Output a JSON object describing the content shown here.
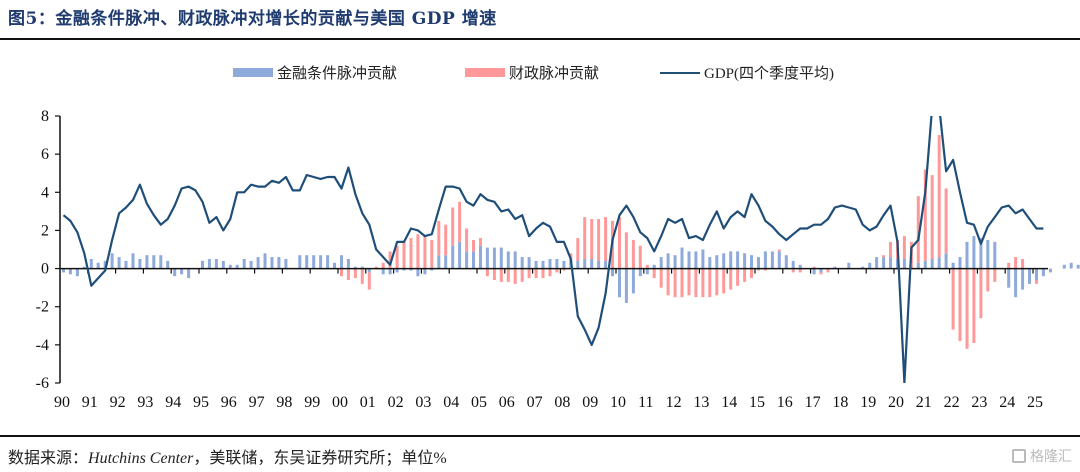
{
  "title": "图5：金融条件脉冲、财政脉冲对增长的贡献与美国 GDP 增速",
  "source": {
    "prefix": "数据来源：",
    "italic": "Hutchins Center",
    "suffix": "，美联储，东吴证券研究所；单位%"
  },
  "watermark": "格隆汇",
  "colors": {
    "financial": "#8eaadb",
    "fiscal": "#ff9999",
    "gdp": "#1f4e79",
    "title": "#1f3b6f"
  },
  "chart_data": {
    "type": "bar+line",
    "title": "金融条件脉冲、财政脉冲对增长的贡献与美国 GDP 增速",
    "xlabel": "",
    "ylabel": "",
    "ylim": [
      -6,
      8
    ],
    "yticks": [
      8,
      6,
      4,
      2,
      0,
      -2,
      -4,
      -6
    ],
    "categories": [
      "90",
      "91",
      "92",
      "93",
      "94",
      "95",
      "96",
      "97",
      "98",
      "99",
      "00",
      "01",
      "02",
      "03",
      "04",
      "05",
      "06",
      "07",
      "08",
      "09",
      "10",
      "11",
      "12",
      "13",
      "14",
      "15",
      "16",
      "17",
      "18",
      "19",
      "20",
      "21",
      "22",
      "23",
      "24",
      "25"
    ],
    "frequency": "quarterly",
    "start": "1990Q1",
    "legend": [
      {
        "name": "金融条件脉冲贡献",
        "kind": "bar"
      },
      {
        "name": "财政脉冲贡献",
        "kind": "bar"
      },
      {
        "name": "GDP(四个季度平均)",
        "kind": "line"
      }
    ],
    "legend_position": "top-center",
    "series": [
      {
        "name": "金融条件脉冲贡献",
        "type": "bar",
        "values": [
          -0.2,
          -0.3,
          -0.4,
          0.1,
          0.5,
          0.3,
          0.4,
          0.8,
          0.6,
          0.4,
          0.8,
          0.5,
          0.7,
          0.7,
          0.7,
          0.4,
          -0.4,
          -0.3,
          -0.5,
          0.0,
          0.4,
          0.5,
          0.5,
          0.4,
          0.2,
          0.2,
          0.5,
          0.4,
          0.6,
          0.8,
          0.6,
          0.6,
          0.5,
          0.0,
          0.7,
          0.7,
          0.7,
          0.7,
          0.7,
          0.3,
          0.7,
          0.5,
          0.1,
          0.1,
          -0.2,
          0.0,
          -0.3,
          -0.3,
          -0.2,
          -0.1,
          -0.1,
          -0.4,
          -0.3,
          -0.1,
          0.7,
          0.7,
          1.2,
          1.4,
          0.9,
          0.9,
          1.2,
          1.1,
          1.1,
          1.1,
          0.9,
          0.9,
          0.6,
          0.6,
          0.4,
          0.4,
          0.5,
          0.5,
          0.4,
          0.5,
          0.4,
          0.5,
          0.5,
          0.4,
          0.4,
          -0.4,
          -1.5,
          -1.8,
          -1.3,
          -0.4,
          -0.3,
          0.2,
          0.6,
          0.8,
          0.7,
          1.1,
          0.9,
          0.9,
          1.0,
          0.6,
          0.7,
          0.8,
          0.9,
          0.9,
          0.8,
          0.7,
          0.6,
          0.9,
          0.9,
          0.9,
          0.7,
          0.4,
          0.2,
          0.0,
          -0.3,
          -0.2,
          0.0,
          0.1,
          0.0,
          0.3,
          0.0,
          0.1,
          0.3,
          0.6,
          0.6,
          0.6,
          0.5,
          0.5,
          0.0,
          0.3,
          0.4,
          0.5,
          0.6,
          0.8,
          0.3,
          0.6,
          1.4,
          1.7,
          1.6,
          1.5,
          1.4,
          0.0,
          -1.0,
          -1.5,
          -1.1,
          -0.8,
          -0.6,
          -0.4,
          -0.2,
          0.0,
          0.2,
          0.3,
          0.2,
          0.6,
          1.0
        ],
        "note": "approximate readings, one value per quarter"
      },
      {
        "name": "财政脉冲贡献",
        "type": "bar",
        "values": [
          0.0,
          0.0,
          0.0,
          0.0,
          0.0,
          0.0,
          0.0,
          0.0,
          0.0,
          0.0,
          0.0,
          0.0,
          0.0,
          0.0,
          0.0,
          0.0,
          0.0,
          0.0,
          0.0,
          0.0,
          0.0,
          0.0,
          0.0,
          0.0,
          0.0,
          0.0,
          0.0,
          0.0,
          0.0,
          0.0,
          0.0,
          0.0,
          0.0,
          0.0,
          0.0,
          0.0,
          0.0,
          0.0,
          0.0,
          0.0,
          -0.4,
          -0.6,
          -0.5,
          -0.8,
          -0.9,
          0.1,
          0.3,
          0.9,
          1.2,
          1.4,
          1.6,
          1.8,
          1.7,
          1.5,
          1.8,
          1.6,
          2.0,
          2.1,
          1.2,
          0.6,
          0.4,
          -0.4,
          -0.6,
          -0.7,
          -0.7,
          -0.8,
          -0.7,
          -0.5,
          -0.5,
          -0.5,
          -0.4,
          -0.2,
          -0.1,
          0.3,
          1.2,
          2.2,
          2.1,
          2.2,
          2.3,
          2.5,
          2.7,
          1.9,
          1.5,
          1.2,
          0.2,
          -0.5,
          -1.0,
          -1.4,
          -1.5,
          -1.5,
          -1.4,
          -1.5,
          -1.5,
          -1.5,
          -1.4,
          -1.3,
          -1.1,
          -0.9,
          -0.7,
          -0.5,
          -0.1,
          -0.1,
          0.0,
          0.1,
          0.0,
          -0.2,
          -0.2,
          0.0,
          0.1,
          -0.1,
          -0.2,
          0.0,
          0.0,
          0.0,
          0.0,
          0.0,
          0.0,
          0.0,
          0.1,
          0.8,
          1.0,
          1.2,
          1.4,
          3.5,
          4.8,
          4.4,
          6.4,
          3.4,
          -3.2,
          -3.8,
          -4.2,
          -3.9,
          -2.6,
          -1.2,
          -0.7,
          0.0,
          0.3,
          0.6,
          0.5,
          0.0,
          -0.2
        ],
        "note": "approximate readings, one value per quarter"
      },
      {
        "name": "GDP(四个季度平均)",
        "type": "line",
        "values": [
          2.8,
          2.5,
          1.9,
          0.8,
          -0.9,
          -0.5,
          -0.1,
          1.5,
          2.9,
          3.2,
          3.6,
          4.4,
          3.4,
          2.8,
          2.3,
          2.6,
          3.3,
          4.2,
          4.3,
          4.1,
          3.5,
          2.4,
          2.7,
          2.0,
          2.6,
          4.0,
          4.0,
          4.4,
          4.3,
          4.3,
          4.6,
          4.5,
          4.8,
          4.1,
          4.1,
          4.9,
          4.8,
          4.7,
          4.8,
          4.8,
          4.2,
          5.3,
          3.9,
          2.9,
          2.3,
          1.0,
          0.6,
          0.2,
          1.4,
          1.4,
          2.1,
          2.0,
          1.7,
          1.8,
          3.1,
          4.3,
          4.3,
          4.2,
          3.5,
          3.3,
          3.9,
          3.6,
          3.5,
          3.0,
          3.1,
          2.6,
          2.8,
          1.7,
          2.1,
          2.4,
          2.2,
          1.4,
          1.4,
          0.5,
          -2.5,
          -3.2,
          -4.0,
          -3.1,
          -1.3,
          1.5,
          2.8,
          3.3,
          2.7,
          1.9,
          1.6,
          0.9,
          1.7,
          2.6,
          2.4,
          2.6,
          1.6,
          1.7,
          1.5,
          2.3,
          3.0,
          2.1,
          2.7,
          3.0,
          2.7,
          3.9,
          3.3,
          2.5,
          2.2,
          1.8,
          1.5,
          1.8,
          2.1,
          2.1,
          2.3,
          2.3,
          2.6,
          3.2,
          3.3,
          3.2,
          3.1,
          2.3,
          2.0,
          2.2,
          2.8,
          3.3,
          1.4,
          -6.0,
          1.1,
          1.5,
          4.0,
          8.5,
          8.5,
          5.1,
          5.7,
          4.0,
          2.4,
          2.3,
          1.3,
          2.2,
          2.7,
          3.2,
          3.3,
          2.9,
          3.1,
          2.6,
          2.1,
          2.1
        ],
        "note": "approximate readings; 2021 peak exceeds ylim and is clipped"
      }
    ]
  }
}
